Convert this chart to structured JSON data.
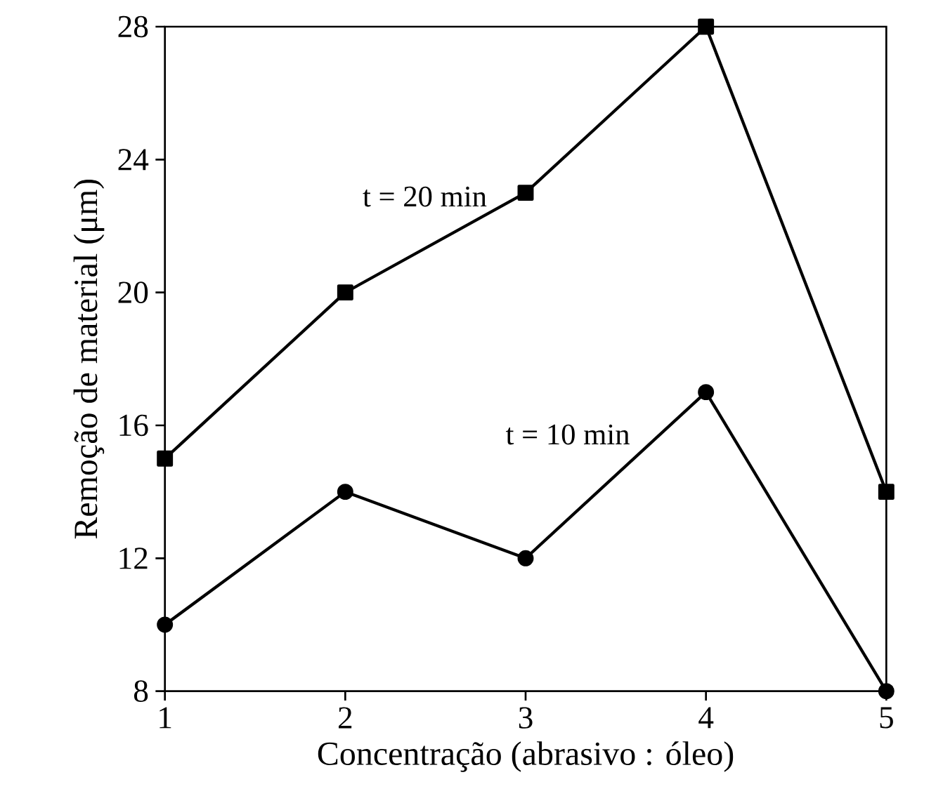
{
  "chart_data": {
    "type": "line",
    "xlabel": "Concentração (abrasivo : óleo)",
    "ylabel": "Remoção de material (μm)",
    "x": [
      1,
      2,
      3,
      4,
      5
    ],
    "xlim": [
      1,
      5
    ],
    "xticks": [
      1,
      2,
      3,
      4,
      5
    ],
    "ylim": [
      8,
      28
    ],
    "yticks": [
      8,
      12,
      16,
      20,
      24,
      28
    ],
    "grid": false,
    "legend": false,
    "line_style": "solid",
    "series": [
      {
        "name": "t = 20 min",
        "color": "#000000",
        "marker": "square",
        "values": [
          15,
          20,
          23,
          28,
          14
        ]
      },
      {
        "name": "t = 10 min",
        "color": "#000000",
        "marker": "circle",
        "values": [
          10,
          14,
          12,
          17,
          8
        ]
      }
    ]
  }
}
